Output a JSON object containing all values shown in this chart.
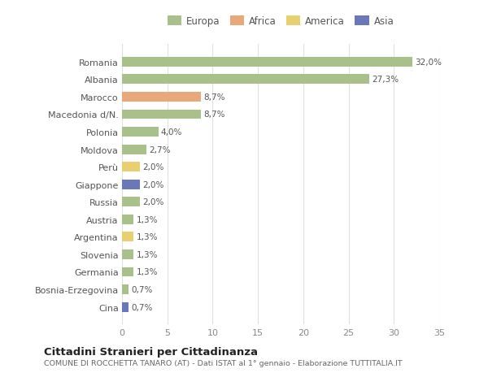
{
  "countries": [
    "Romania",
    "Albania",
    "Marocco",
    "Macedonia d/N.",
    "Polonia",
    "Moldova",
    "Perù",
    "Giappone",
    "Russia",
    "Austria",
    "Argentina",
    "Slovenia",
    "Germania",
    "Bosnia-Erzegovina",
    "Cina"
  ],
  "values": [
    32.0,
    27.3,
    8.7,
    8.7,
    4.0,
    2.7,
    2.0,
    2.0,
    2.0,
    1.3,
    1.3,
    1.3,
    1.3,
    0.7,
    0.7
  ],
  "labels": [
    "32,0%",
    "27,3%",
    "8,7%",
    "8,7%",
    "4,0%",
    "2,7%",
    "2,0%",
    "2,0%",
    "2,0%",
    "1,3%",
    "1,3%",
    "1,3%",
    "1,3%",
    "0,7%",
    "0,7%"
  ],
  "colors": [
    "#a8c08a",
    "#a8c08a",
    "#e8a87a",
    "#a8c08a",
    "#a8c08a",
    "#a8c08a",
    "#e8d070",
    "#6878b8",
    "#a8c08a",
    "#a8c08a",
    "#e8d070",
    "#a8c08a",
    "#a8c08a",
    "#a8c08a",
    "#6878b8"
  ],
  "legend_labels": [
    "Europa",
    "Africa",
    "America",
    "Asia"
  ],
  "legend_colors": [
    "#a8c08a",
    "#e8a87a",
    "#e8d070",
    "#6878b8"
  ],
  "title": "Cittadini Stranieri per Cittadinanza",
  "subtitle": "COMUNE DI ROCCHETTA TANARO (AT) - Dati ISTAT al 1° gennaio - Elaborazione TUTTITALIA.IT",
  "xlim": [
    0,
    35
  ],
  "xticks": [
    0,
    5,
    10,
    15,
    20,
    25,
    30,
    35
  ],
  "bg_color": "#ffffff",
  "plot_bg_color": "#ffffff",
  "grid_color": "#e0e0e0",
  "bar_height": 0.55
}
